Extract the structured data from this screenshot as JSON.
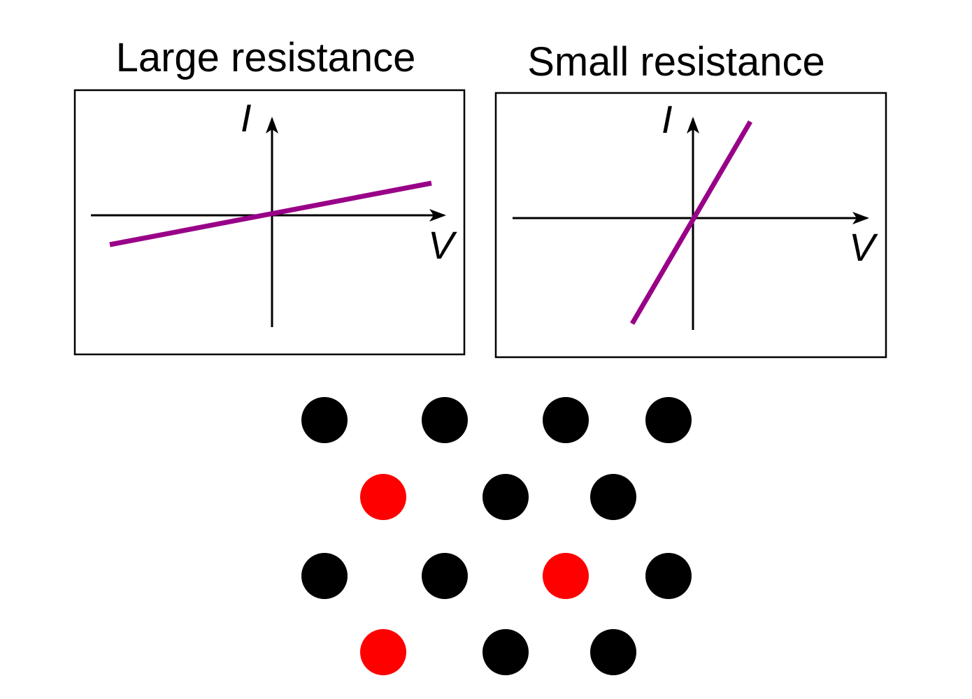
{
  "colors": {
    "line": "#990088",
    "axis": "#000000",
    "frame": "#000000",
    "dot_default": "#000000",
    "dot_highlight": "#ff0000"
  },
  "panels": [
    {
      "title": "Large resistance",
      "y_label": "I",
      "x_label": "V",
      "slope": "shallow"
    },
    {
      "title": "Small resistance",
      "y_label": "I",
      "x_label": "V",
      "slope": "steep"
    }
  ],
  "lattice": {
    "rows": [
      [
        "black",
        "black",
        "black",
        "black"
      ],
      [
        "red",
        "black",
        "black"
      ],
      [
        "black",
        "black",
        "red",
        "black"
      ],
      [
        "red",
        "black",
        "black"
      ]
    ]
  }
}
